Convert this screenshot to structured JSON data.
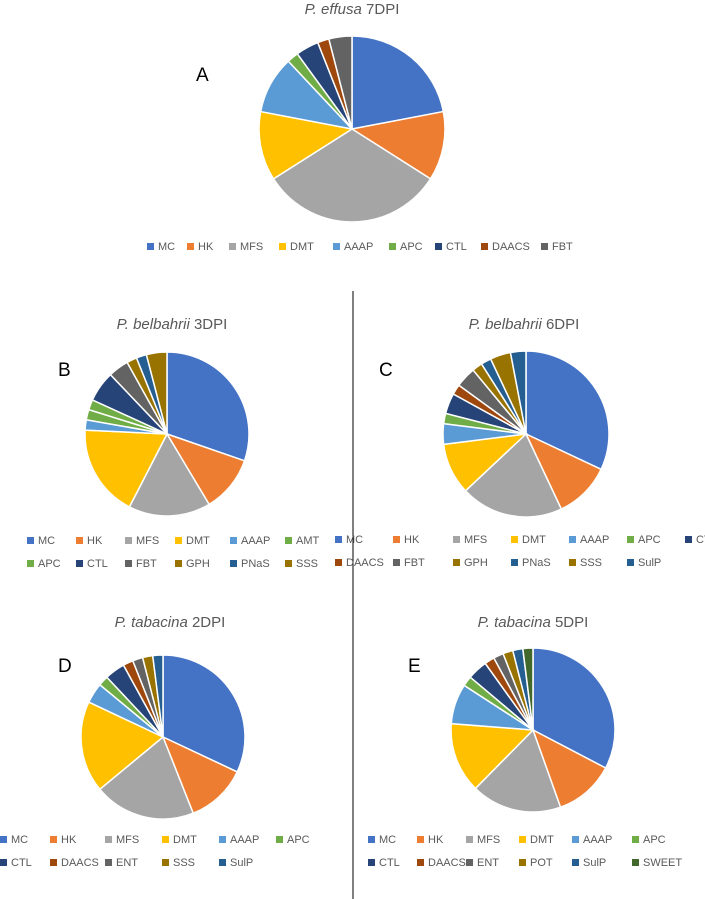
{
  "colors": {
    "MC": "#4472C4",
    "HK": "#ED7D31",
    "MFS": "#A5A5A5",
    "DMT": "#FFC000",
    "AAAP": "#5B9BD5",
    "APC": "#70AD47",
    "AMT": "#70AD47",
    "CTL": "#264478",
    "DAACS": "#9E480E",
    "FBT": "#636363",
    "ENT": "#636363",
    "GPH": "#997300",
    "SSS": "#997300",
    "POT": "#997300",
    "PNaS": "#255E91",
    "SulP": "#255E91",
    "SWEET": "#43682B"
  },
  "chart_data": [
    {
      "type": "pie",
      "panel": "A",
      "title_species": "P. effusa",
      "title_stage": "7DPI",
      "categories": [
        "MC",
        "HK",
        "MFS",
        "DMT",
        "AAAP",
        "APC",
        "CTL",
        "DAACS",
        "FBT"
      ],
      "values": [
        22,
        12,
        32,
        12,
        10,
        2,
        4,
        2,
        4
      ],
      "legend_position": "bottom"
    },
    {
      "type": "pie",
      "panel": "B",
      "title_species": "P.  belbahrii",
      "title_stage": "3DPI",
      "categories": [
        "MC",
        "HK",
        "MFS",
        "DMT",
        "AAAP",
        "AMT",
        "APC",
        "CTL",
        "FBT",
        "GPH",
        "PNaS",
        "SSS"
      ],
      "values": [
        30,
        11,
        16,
        18,
        2,
        2,
        2,
        6,
        4,
        2,
        2,
        4
      ],
      "legend_position": "bottom"
    },
    {
      "type": "pie",
      "panel": "C",
      "title_species": "P. belbahrii",
      "title_stage": "6DPI",
      "categories": [
        "MC",
        "HK",
        "MFS",
        "DMT",
        "AAAP",
        "APC",
        "CTL",
        "DAACS",
        "FBT",
        "GPH",
        "PNaS",
        "SSS",
        "SulP"
      ],
      "values": [
        32,
        11,
        20,
        10,
        4,
        2,
        4,
        2,
        4,
        2,
        2,
        4,
        3
      ],
      "legend_position": "bottom"
    },
    {
      "type": "pie",
      "panel": "D",
      "title_species": "P. tabacina",
      "title_stage": "2DPI",
      "categories": [
        "MC",
        "HK",
        "MFS",
        "DMT",
        "AAAP",
        "APC",
        "CTL",
        "DAACS",
        "ENT",
        "SSS",
        "SulP"
      ],
      "values": [
        32,
        12,
        20,
        18,
        4,
        2,
        4,
        2,
        2,
        2,
        2
      ],
      "legend_position": "bottom"
    },
    {
      "type": "pie",
      "panel": "E",
      "title_species": "P. tabacina",
      "title_stage": "5DPI",
      "categories": [
        "MC",
        "HK",
        "MFS",
        "DMT",
        "AAAP",
        "APC",
        "CTL",
        "DAACS",
        "ENT",
        "POT",
        "SulP",
        "SWEET"
      ],
      "values": [
        33,
        12,
        18,
        14,
        8,
        2,
        4,
        2,
        2,
        2,
        2,
        2
      ],
      "legend_position": "bottom"
    }
  ]
}
